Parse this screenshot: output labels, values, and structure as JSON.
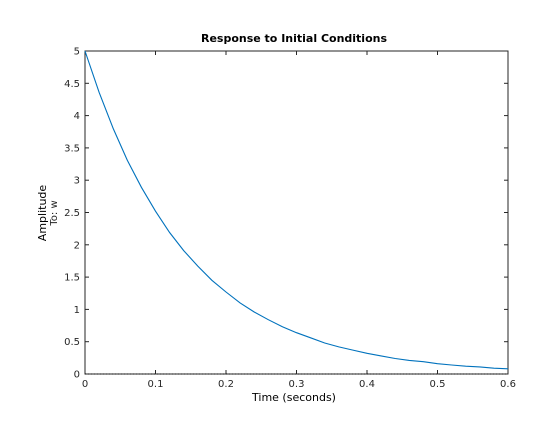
{
  "chart_data": {
    "type": "line",
    "title": "Response to Initial Conditions",
    "xlabel": "Time (seconds)",
    "ylabel": "Amplitude",
    "ylabel_sub": "To: w",
    "xlim": [
      0,
      0.6
    ],
    "ylim": [
      0,
      5
    ],
    "xticks": [
      0,
      0.1,
      0.2,
      0.3,
      0.4,
      0.5,
      0.6
    ],
    "xtick_labels": [
      "0",
      "0.1",
      "0.2",
      "0.3",
      "0.4",
      "0.5",
      "0.6"
    ],
    "yticks": [
      0,
      0.5,
      1,
      1.5,
      2,
      2.5,
      3,
      3.5,
      4,
      4.5,
      5
    ],
    "ytick_labels": [
      "0",
      "0.5",
      "1",
      "1.5",
      "2",
      "2.5",
      "3",
      "3.5",
      "4",
      "4.5",
      "5"
    ],
    "grid": false,
    "reference_line": {
      "y": 0,
      "style": "dotted",
      "color": "#000000"
    },
    "series": [
      {
        "color": "#0072bd",
        "x": [
          0,
          0.02,
          0.04,
          0.06,
          0.08,
          0.1,
          0.12,
          0.14,
          0.16,
          0.18,
          0.2,
          0.22,
          0.24,
          0.26,
          0.28,
          0.3,
          0.32,
          0.34,
          0.36,
          0.38,
          0.4,
          0.42,
          0.44,
          0.46,
          0.48,
          0.5,
          0.52,
          0.54,
          0.56,
          0.58,
          0.6
        ],
        "y": [
          5.0,
          4.36,
          3.8,
          3.31,
          2.89,
          2.52,
          2.19,
          1.91,
          1.67,
          1.45,
          1.27,
          1.1,
          0.96,
          0.84,
          0.73,
          0.64,
          0.56,
          0.48,
          0.42,
          0.37,
          0.32,
          0.28,
          0.24,
          0.21,
          0.19,
          0.16,
          0.14,
          0.12,
          0.11,
          0.09,
          0.08
        ]
      }
    ]
  }
}
